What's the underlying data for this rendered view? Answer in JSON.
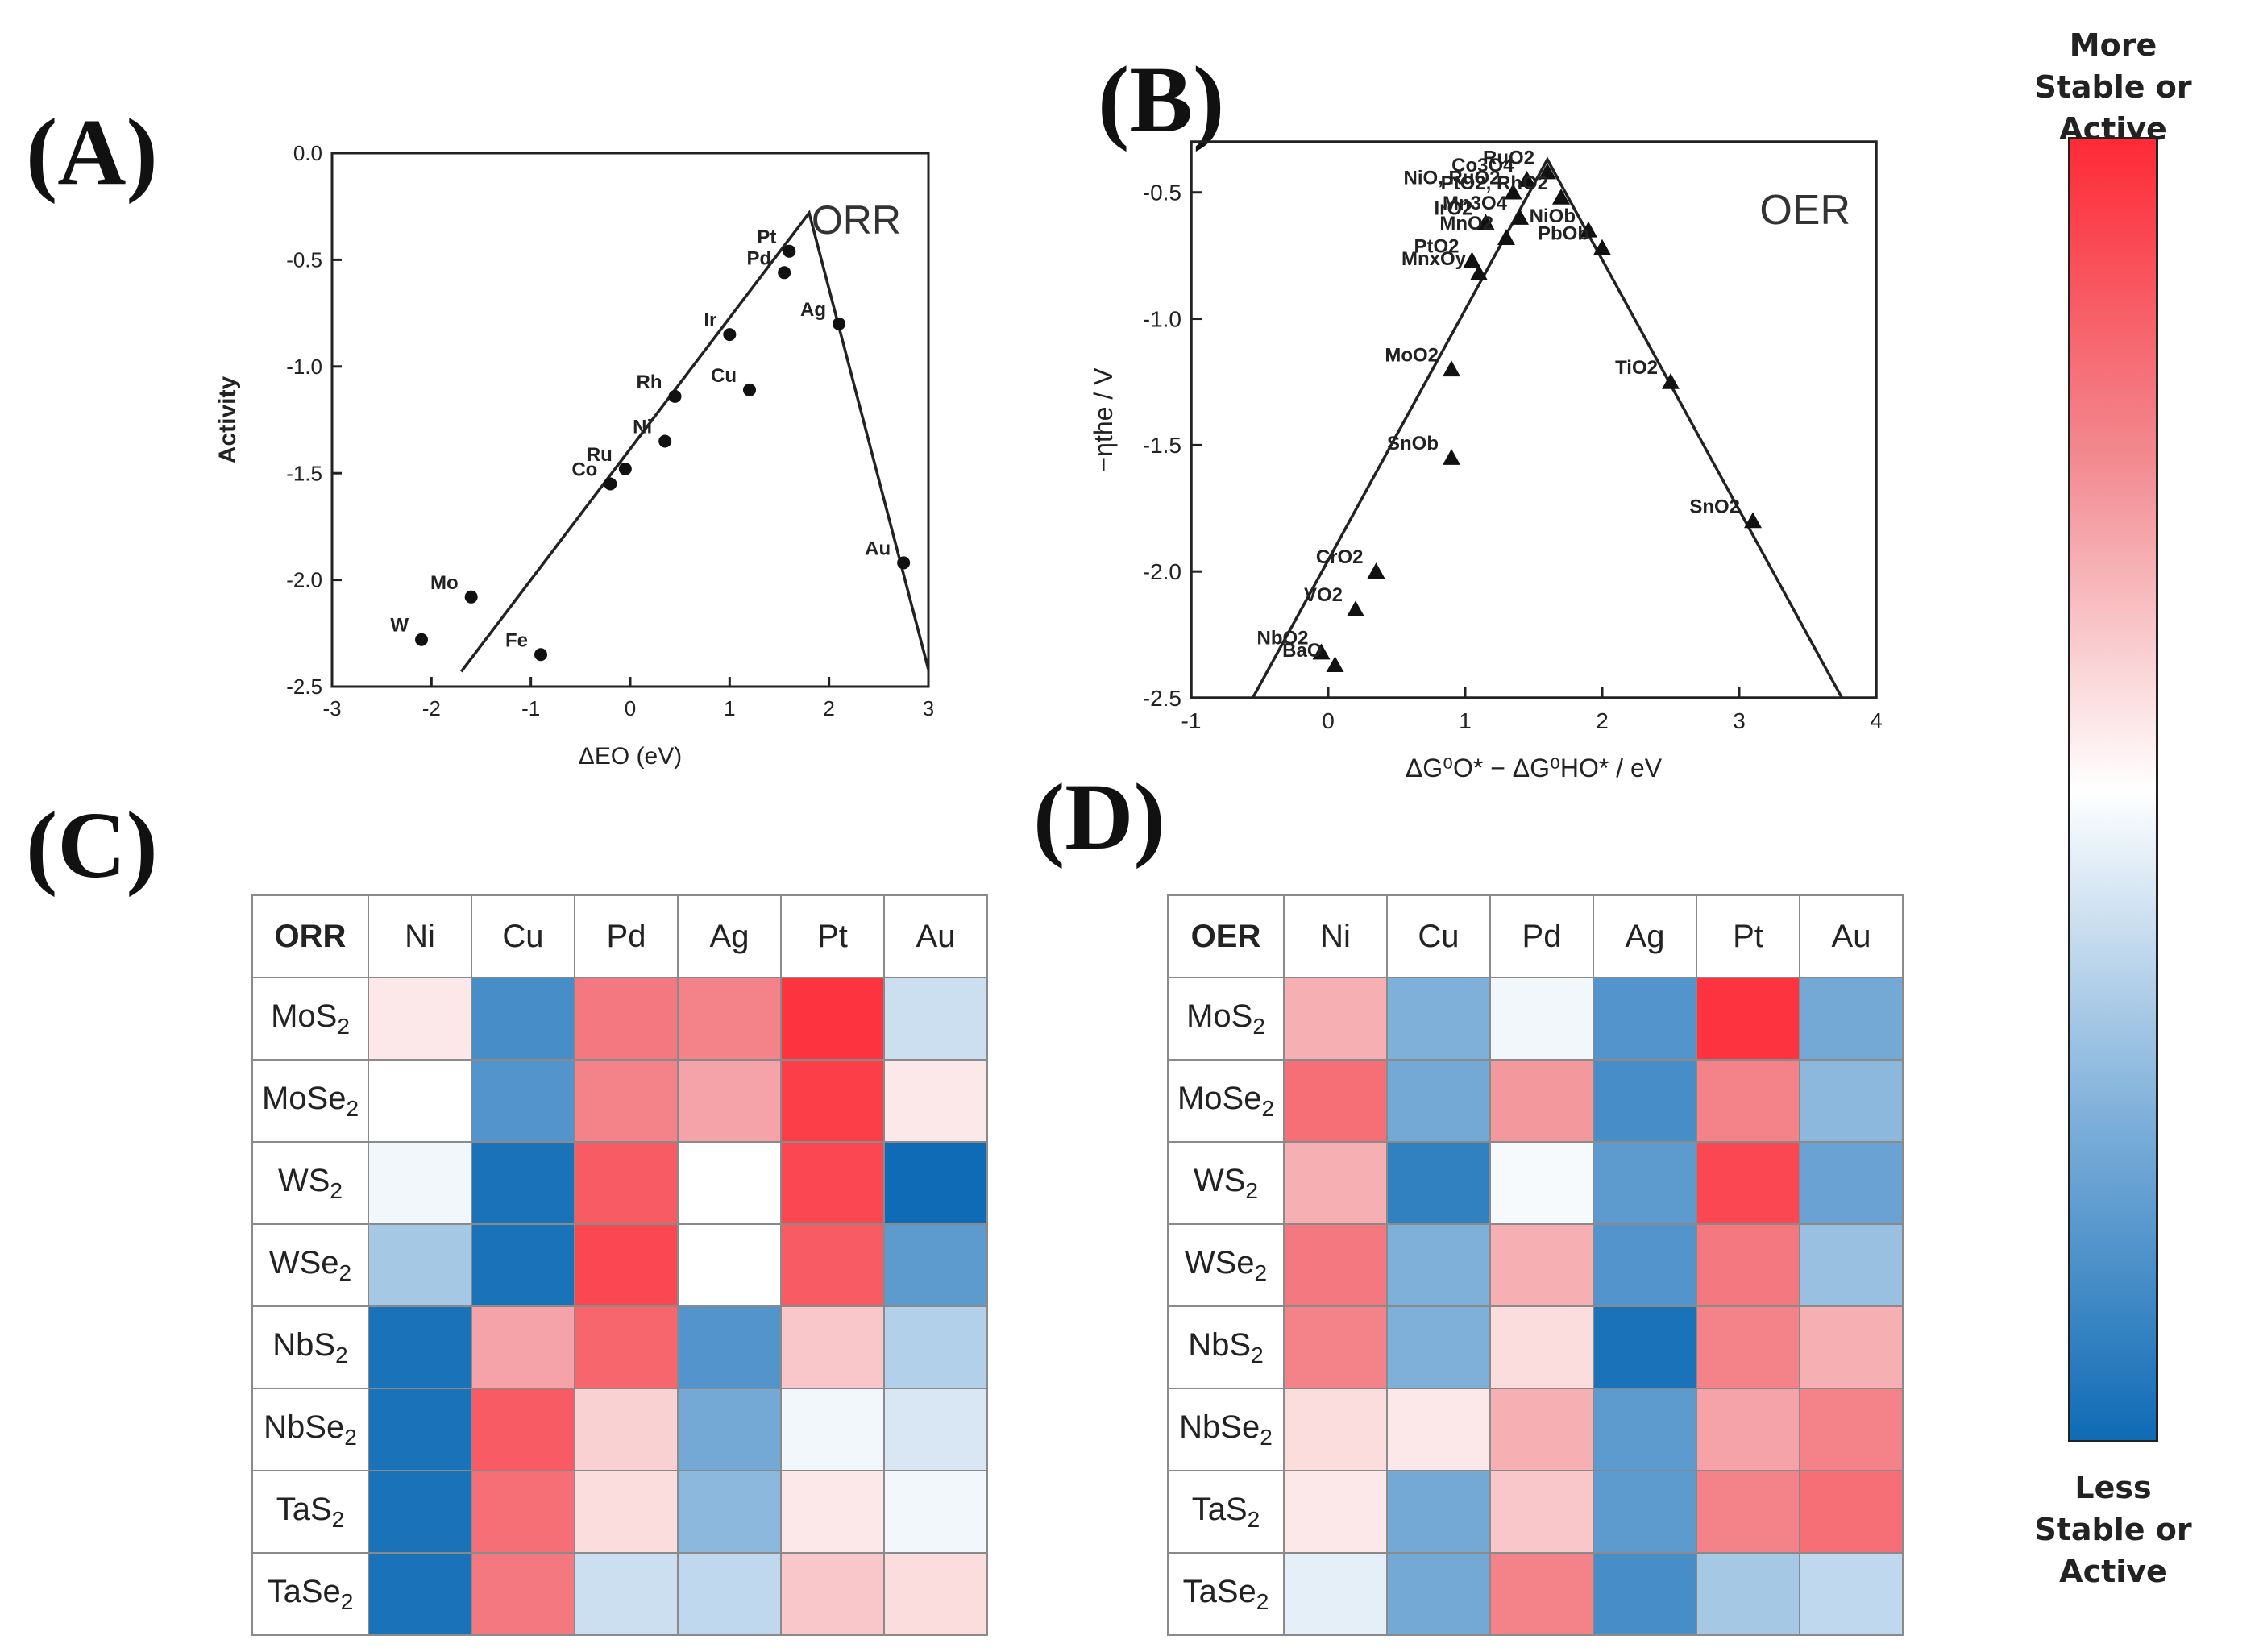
{
  "panels": {
    "a": "(A)",
    "b": "(B)",
    "c": "(C)",
    "d": "(D)"
  },
  "colorbar": {
    "top_label_line1": "More",
    "top_label_line2": "Stable or Active",
    "bottom_label_line1": "Less",
    "bottom_label_line2": "Stable or Active",
    "colors": [
      "#fe2a36",
      "#f28c92",
      "#ffffff",
      "#7fb0da",
      "#0f6bb5"
    ]
  },
  "chart_data": [
    {
      "type": "scatter",
      "panel": "A",
      "title": "ORR",
      "xlabel": "ΔEO (eV)",
      "ylabel": "Activity",
      "xlim": [
        -3,
        3
      ],
      "ylim": [
        -2.5,
        0.0
      ],
      "xticks": [
        "-3",
        "-2",
        "-1",
        "0",
        "1",
        "2",
        "3"
      ],
      "yticks": [
        "0.0",
        "-0.5",
        "-1.0",
        "-1.5",
        "-2.0",
        "-2.5"
      ],
      "points": [
        {
          "label": "W",
          "x": -2.1,
          "y": -2.28
        },
        {
          "label": "Mo",
          "x": -1.6,
          "y": -2.08
        },
        {
          "label": "Fe",
          "x": -0.9,
          "y": -2.35
        },
        {
          "label": "Co",
          "x": -0.2,
          "y": -1.55
        },
        {
          "label": "Ru",
          "x": -0.05,
          "y": -1.48
        },
        {
          "label": "Ni",
          "x": 0.35,
          "y": -1.35
        },
        {
          "label": "Rh",
          "x": 0.45,
          "y": -1.14
        },
        {
          "label": "Cu",
          "x": 1.2,
          "y": -1.11
        },
        {
          "label": "Ir",
          "x": 1.0,
          "y": -0.85
        },
        {
          "label": "Pd",
          "x": 1.55,
          "y": -0.56
        },
        {
          "label": "Pt",
          "x": 1.6,
          "y": -0.46
        },
        {
          "label": "Ag",
          "x": 2.1,
          "y": -0.8
        },
        {
          "label": "Au",
          "x": 2.75,
          "y": -1.92
        }
      ],
      "volcano": [
        [
          -1.7,
          -2.43
        ],
        [
          1.8,
          -0.28
        ],
        [
          3.0,
          -2.42
        ]
      ]
    },
    {
      "type": "scatter",
      "panel": "B",
      "title": "OER",
      "xlabel": "ΔG⁰O* − ΔG⁰HO* / eV",
      "ylabel": "−ηthe / V",
      "xlim": [
        -1,
        4
      ],
      "ylim": [
        -2.5,
        -0.3
      ],
      "xticks": [
        "-1",
        "0",
        "1",
        "2",
        "3",
        "4"
      ],
      "yticks": [
        "-0.5",
        "-1.0",
        "-1.5",
        "-2.0",
        "-2.5"
      ],
      "points": [
        {
          "label": "Co3O4",
          "x": 1.45,
          "y": -0.45
        },
        {
          "label": "NiO, RuO2",
          "x": 1.35,
          "y": -0.5
        },
        {
          "label": "RuO2",
          "x": 1.6,
          "y": -0.42
        },
        {
          "label": "PtO2, RhO2",
          "x": 1.7,
          "y": -0.52
        },
        {
          "label": "Mn3O4",
          "x": 1.4,
          "y": -0.6
        },
        {
          "label": "IrO2",
          "x": 1.15,
          "y": -0.62
        },
        {
          "label": "MnO2",
          "x": 1.3,
          "y": -0.68
        },
        {
          "label": "NiOb",
          "x": 1.9,
          "y": -0.65
        },
        {
          "label": "PbOb",
          "x": 2.0,
          "y": -0.72
        },
        {
          "label": "PtO2",
          "x": 1.05,
          "y": -0.77
        },
        {
          "label": "MnxOy",
          "x": 1.1,
          "y": -0.82
        },
        {
          "label": "MoO2",
          "x": 0.9,
          "y": -1.2
        },
        {
          "label": "TiO2",
          "x": 2.5,
          "y": -1.25
        },
        {
          "label": "SnOb",
          "x": 0.9,
          "y": -1.55
        },
        {
          "label": "SnO2",
          "x": 3.1,
          "y": -1.8
        },
        {
          "label": "CrO2",
          "x": 0.35,
          "y": -2.0
        },
        {
          "label": "VO2",
          "x": 0.2,
          "y": -2.15
        },
        {
          "label": "NbO2",
          "x": -0.05,
          "y": -2.32
        },
        {
          "label": "BaO",
          "x": 0.05,
          "y": -2.37
        }
      ],
      "volcano": [
        [
          -0.55,
          -2.5
        ],
        [
          1.6,
          -0.37
        ],
        [
          3.75,
          -2.5
        ]
      ]
    },
    {
      "type": "heatmap",
      "panel": "C",
      "corner": "ORR",
      "columns": [
        "Ni",
        "Cu",
        "Pd",
        "Ag",
        "Pt",
        "Au"
      ],
      "rows": [
        "MoS2",
        "MoSe2",
        "WS2",
        "WSe2",
        "NbS2",
        "NbSe2",
        "TaS2",
        "TaSe2"
      ],
      "values": [
        [
          0.1,
          -0.75,
          0.6,
          0.55,
          0.95,
          -0.2
        ],
        [
          0.0,
          -0.7,
          0.55,
          0.4,
          0.9,
          0.1
        ],
        [
          -0.05,
          -0.95,
          0.75,
          0.0,
          0.85,
          -1.0
        ],
        [
          -0.35,
          -0.95,
          0.85,
          0.0,
          0.75,
          -0.65
        ],
        [
          -0.95,
          0.4,
          0.7,
          -0.7,
          0.25,
          -0.3
        ],
        [
          -0.95,
          0.75,
          0.2,
          -0.55,
          -0.05,
          -0.15
        ],
        [
          -0.95,
          0.65,
          0.15,
          -0.45,
          0.1,
          -0.05
        ],
        [
          -0.95,
          0.6,
          -0.2,
          -0.25,
          0.25,
          0.15
        ]
      ]
    },
    {
      "type": "heatmap",
      "panel": "D",
      "corner": "OER",
      "columns": [
        "Ni",
        "Cu",
        "Pd",
        "Ag",
        "Pt",
        "Au"
      ],
      "rows": [
        "MoS2",
        "MoSe2",
        "WS2",
        "WSe2",
        "NbS2",
        "NbSe2",
        "TaS2",
        "TaSe2"
      ],
      "values": [
        [
          0.35,
          -0.5,
          -0.05,
          -0.7,
          0.95,
          -0.55
        ],
        [
          0.65,
          -0.55,
          0.45,
          -0.75,
          0.55,
          -0.45
        ],
        [
          0.35,
          -0.85,
          -0.03,
          -0.65,
          0.85,
          -0.6
        ],
        [
          0.6,
          -0.5,
          0.35,
          -0.7,
          0.6,
          -0.4
        ],
        [
          0.55,
          -0.5,
          0.15,
          -0.95,
          0.55,
          0.35
        ],
        [
          0.15,
          0.1,
          0.35,
          -0.65,
          0.4,
          0.55
        ],
        [
          0.1,
          -0.55,
          0.25,
          -0.65,
          0.55,
          0.65
        ],
        [
          -0.1,
          -0.55,
          0.55,
          -0.75,
          -0.35,
          -0.25
        ]
      ]
    }
  ]
}
